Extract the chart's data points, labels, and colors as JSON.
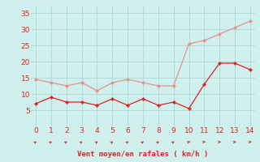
{
  "x": [
    0,
    1,
    2,
    3,
    4,
    5,
    6,
    7,
    8,
    9,
    10,
    11,
    12,
    13,
    14
  ],
  "wind_avg": [
    7,
    9,
    7.5,
    7.5,
    6.5,
    8.5,
    6.5,
    8.5,
    6.5,
    7.5,
    5.5,
    13,
    19.5,
    19.5,
    17.5
  ],
  "wind_gust": [
    14.5,
    13.5,
    12.5,
    13.5,
    11,
    13.5,
    14.5,
    13.5,
    12.5,
    12.5,
    25.5,
    26.5,
    28.5,
    30.5,
    32.5
  ],
  "avg_color": "#dd2222",
  "gust_color": "#e89090",
  "background": "#cff0ec",
  "grid_color": "#aad8d4",
  "xlabel": "Vent moyen/en rafales ( km/h )",
  "ylim": [
    0,
    37
  ],
  "xlim": [
    -0.3,
    14.3
  ],
  "yticks": [
    5,
    10,
    15,
    20,
    25,
    30,
    35
  ],
  "xticks": [
    0,
    1,
    2,
    3,
    4,
    5,
    6,
    7,
    8,
    9,
    10,
    11,
    12,
    13,
    14
  ],
  "label_fontsize": 6.5,
  "tick_fontsize": 6.5,
  "arrow_angles_deg": [
    50,
    50,
    50,
    50,
    50,
    50,
    50,
    50,
    50,
    50,
    30,
    5,
    5,
    5,
    5
  ]
}
